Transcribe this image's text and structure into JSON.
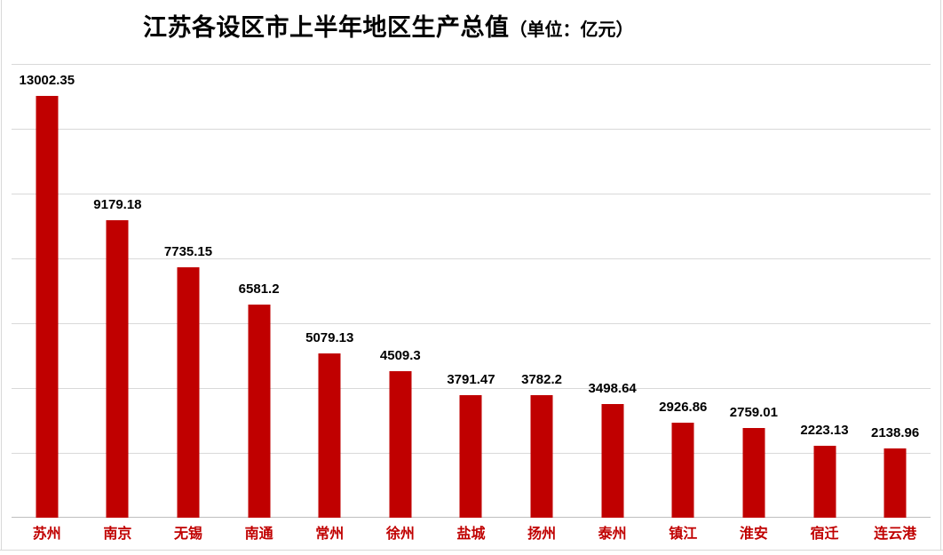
{
  "title": {
    "main": "江苏各设区市上半年地区生产总值",
    "unit": "（单位：亿元）"
  },
  "chart_data": {
    "type": "bar",
    "title": "江苏各设区市上半年地区生产总值（单位：亿元）",
    "categories": [
      "苏州",
      "南京",
      "无锡",
      "南通",
      "常州",
      "徐州",
      "盐城",
      "扬州",
      "泰州",
      "镇江",
      "淮安",
      "宿迁",
      "连云港"
    ],
    "values": [
      13002.35,
      9179.18,
      7735.15,
      6581.2,
      5079.13,
      4509.3,
      3791.47,
      3782.2,
      3498.64,
      2926.86,
      2759.01,
      2223.13,
      2138.96
    ],
    "xlabel": "",
    "ylabel": "",
    "ylim": [
      0,
      14000
    ],
    "gridline_step": 2000,
    "grid": true,
    "legend": "none",
    "value_labels": true,
    "bar_color": "#c00000",
    "value_label_color": "#000000",
    "category_label_color": "#c00000",
    "gridline_color": "#d9d9d9",
    "baseline_color": "#bfbfbf",
    "frame_color": "#d9d9d9"
  }
}
